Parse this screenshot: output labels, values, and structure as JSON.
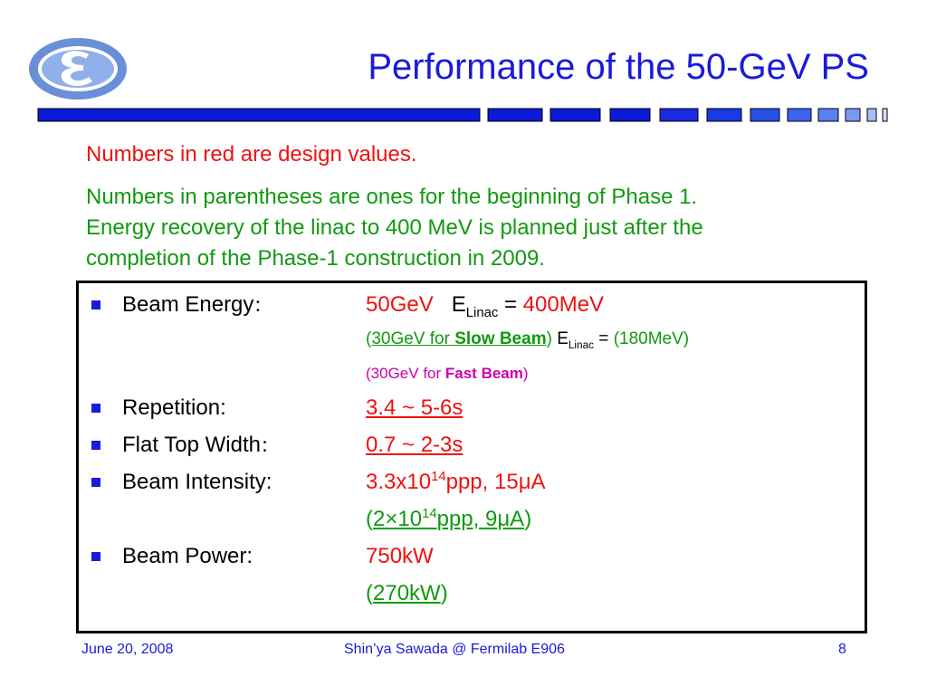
{
  "slide": {
    "title": "Performance of the 50-GeV PS",
    "logo_icon": "kek-logo-icon",
    "colors": {
      "title_blue": "#1a1adc",
      "design_red": "#ee1111",
      "phase1_green": "#119911",
      "fast_beam_magenta": "#cc00aa"
    }
  },
  "notes": {
    "red_line": "Numbers in red are design values.",
    "green_lines": [
      "Numbers in parentheses are ones for the beginning of Phase 1.",
      "Energy recovery of the linac to 400 MeV is planned just after the",
      "completion of the Phase-1 construction in 2009."
    ]
  },
  "params": {
    "beam_energy": {
      "label": "Beam Energy",
      "colon": "：",
      "design": "50GeV",
      "e_symbol": "E",
      "linac_sub": "Linac",
      "equals": " = ",
      "design_linac": "400MeV",
      "phase1_open": "(",
      "phase1_value": "30GeV for ",
      "phase1_strong": "Slow Beam",
      "phase1_close": ")",
      "phase1_linac": "(180MeV)",
      "fast_open": "(",
      "fast_value": "30GeV for ",
      "fast_strong": "Fast Beam",
      "fast_close": ")"
    },
    "repetition": {
      "label": "Repetition:",
      "value": "3.4 ~ 5-6s"
    },
    "flat_top_width": {
      "label": "Flat Top Width",
      "colon": "：",
      "value": "0.7 ~ 2-3s"
    },
    "beam_intensity": {
      "label": "Beam Intensity:",
      "design_base": "3.3x10",
      "design_exp": "14",
      "design_rest": "ppp, 15",
      "mu": "μ",
      "amp": "A",
      "phase1_open": "(",
      "phase1_base": "2×10",
      "phase1_exp": "14",
      "phase1_rest": "ppp, 9",
      "phase1_close": ")"
    },
    "beam_power": {
      "label": "Beam Power:",
      "design": "750kW",
      "phase1_open": "(",
      "phase1_value": "270kW",
      "phase1_close": ")"
    }
  },
  "footer": {
    "date": "June 20, 2008",
    "presenter": "Shin’ya Sawada @ Fermilab E906",
    "page": "8"
  }
}
